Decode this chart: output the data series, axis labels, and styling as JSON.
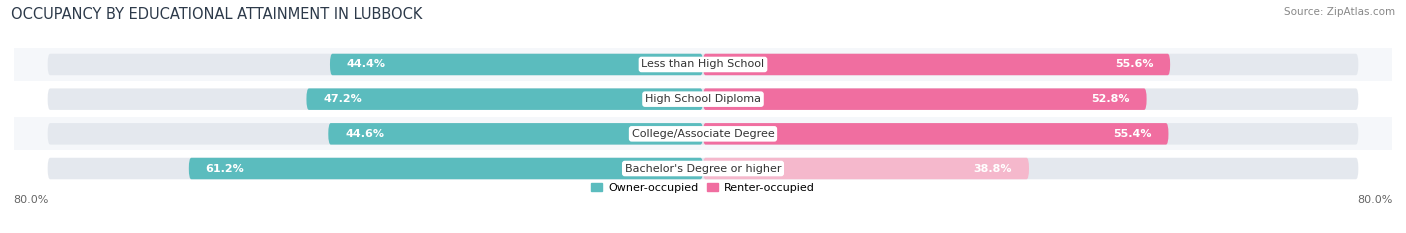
{
  "title": "OCCUPANCY BY EDUCATIONAL ATTAINMENT IN LUBBOCK",
  "source": "Source: ZipAtlas.com",
  "categories": [
    "Less than High School",
    "High School Diploma",
    "College/Associate Degree",
    "Bachelor's Degree or higher"
  ],
  "owner_values": [
    44.4,
    47.2,
    44.6,
    61.2
  ],
  "renter_values": [
    55.6,
    52.8,
    55.4,
    38.8
  ],
  "owner_color": "#5bbcbe",
  "renter_color_bright": "#f06ea0",
  "renter_color_light": "#f5b8cc",
  "owner_label": "Owner-occupied",
  "renter_label": "Renter-occupied",
  "xlim_left": -80.0,
  "xlim_right": 80.0,
  "axis_left_label": "80.0%",
  "axis_right_label": "80.0%",
  "bar_height": 0.62,
  "bg_color": "#ffffff",
  "row_bg_even": "#f5f7fa",
  "row_bg_odd": "#ffffff",
  "bar_track_color": "#e4e8ee",
  "title_fontsize": 10.5,
  "source_fontsize": 7.5,
  "label_fontsize": 8,
  "value_fontsize": 8
}
